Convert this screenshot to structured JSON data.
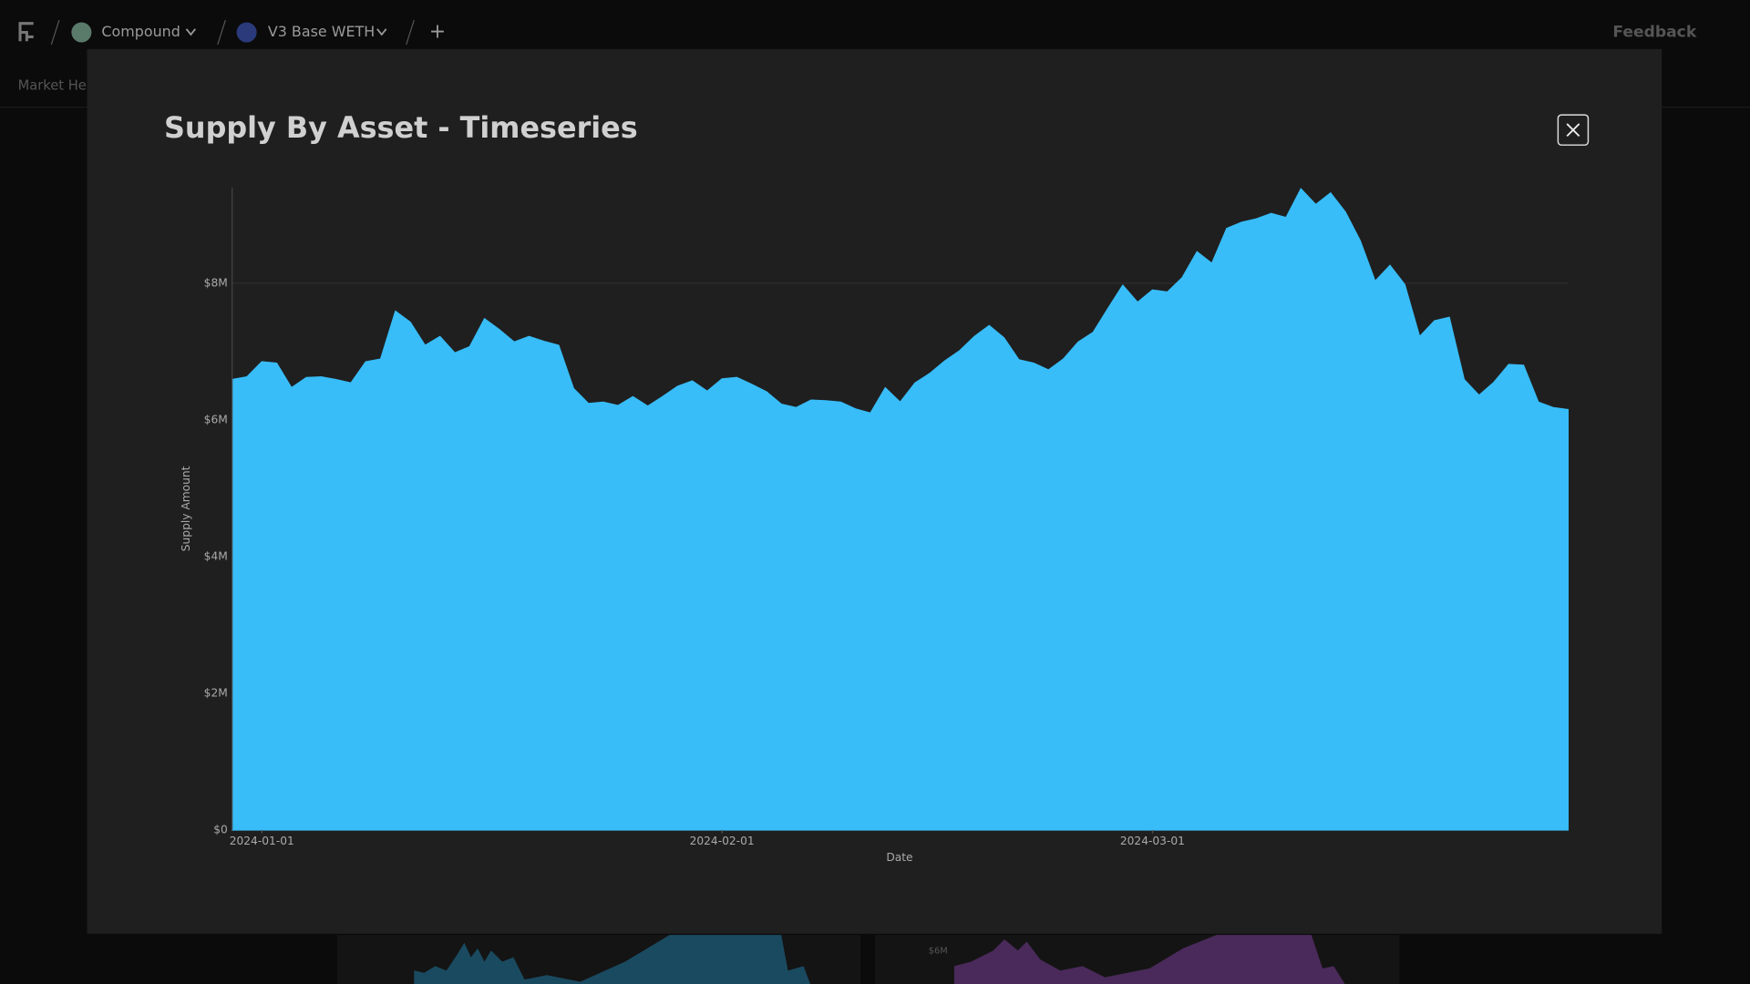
{
  "nav": {
    "project": "Compound",
    "market": "V3 Base WETH",
    "add": "+",
    "feedback": "Feedback",
    "tab": "Market Hea"
  },
  "background": {
    "label": "$6M"
  },
  "chart_data": {
    "type": "area",
    "title": "Supply By Asset - Timeseries",
    "x_label": "Date",
    "y_label": "Supply Amount",
    "color": "#38bdf8",
    "x": [
      "2023-12-30",
      "2023-12-31",
      "2024-01-01",
      "2024-01-02",
      "2024-01-03",
      "2024-01-04",
      "2024-01-05",
      "2024-01-06",
      "2024-01-07",
      "2024-01-08",
      "2024-01-09",
      "2024-01-10",
      "2024-01-11",
      "2024-01-12",
      "2024-01-13",
      "2024-01-14",
      "2024-01-15",
      "2024-01-16",
      "2024-01-17",
      "2024-01-18",
      "2024-01-19",
      "2024-01-20",
      "2024-01-21",
      "2024-01-22",
      "2024-01-23",
      "2024-01-24",
      "2024-01-25",
      "2024-01-26",
      "2024-01-27",
      "2024-01-28",
      "2024-01-29",
      "2024-01-30",
      "2024-01-31",
      "2024-02-01",
      "2024-02-02",
      "2024-02-03",
      "2024-02-04",
      "2024-02-05",
      "2024-02-06",
      "2024-02-07",
      "2024-02-08",
      "2024-02-09",
      "2024-02-10",
      "2024-02-11",
      "2024-02-12",
      "2024-02-13",
      "2024-02-14",
      "2024-02-15",
      "2024-02-16",
      "2024-02-17",
      "2024-02-18",
      "2024-02-19",
      "2024-02-20",
      "2024-02-21",
      "2024-02-22",
      "2024-02-23",
      "2024-02-24",
      "2024-02-25",
      "2024-02-26",
      "2024-02-27",
      "2024-02-28",
      "2024-02-29",
      "2024-03-01",
      "2024-03-02",
      "2024-03-03",
      "2024-03-04",
      "2024-03-05",
      "2024-03-06",
      "2024-03-07",
      "2024-03-08",
      "2024-03-09",
      "2024-03-10",
      "2024-03-11",
      "2024-03-12",
      "2024-03-13",
      "2024-03-14",
      "2024-03-15",
      "2024-03-16",
      "2024-03-17",
      "2024-03-18",
      "2024-03-19",
      "2024-03-20",
      "2024-03-21",
      "2024-03-22",
      "2024-03-23",
      "2024-03-24",
      "2024-03-25",
      "2024-03-26",
      "2024-03-27",
      "2024-03-28",
      "2024-03-29"
    ],
    "values": [
      6590000,
      6630000,
      6850000,
      6830000,
      6470000,
      6620000,
      6630000,
      6590000,
      6540000,
      6850000,
      6890000,
      7590000,
      7430000,
      7090000,
      7220000,
      6980000,
      7070000,
      7480000,
      7320000,
      7140000,
      7220000,
      7150000,
      7090000,
      6460000,
      6240000,
      6260000,
      6210000,
      6340000,
      6200000,
      6340000,
      6490000,
      6570000,
      6420000,
      6600000,
      6620000,
      6520000,
      6410000,
      6230000,
      6180000,
      6290000,
      6280000,
      6260000,
      6160000,
      6100000,
      6470000,
      6260000,
      6540000,
      6680000,
      6860000,
      7010000,
      7220000,
      7380000,
      7200000,
      6880000,
      6830000,
      6730000,
      6890000,
      7140000,
      7280000,
      7630000,
      7970000,
      7720000,
      7900000,
      7870000,
      8080000,
      8460000,
      8290000,
      8800000,
      8890000,
      8940000,
      9020000,
      8960000,
      9380000,
      9150000,
      9320000,
      9040000,
      8620000,
      8030000,
      8260000,
      7980000,
      7220000,
      7450000,
      7500000,
      6590000,
      6360000,
      6550000,
      6810000,
      6800000,
      6260000,
      6180000,
      6150000
    ],
    "xlim": [
      "2023-12-30",
      "2024-03-29"
    ],
    "xticks": [
      "2024-01-01",
      "2024-02-01",
      "2024-03-01"
    ],
    "ylim": [
      0,
      9400000
    ],
    "yticks": [
      {
        "value": 0,
        "label": "$0"
      },
      {
        "value": 2000000,
        "label": "$2M"
      },
      {
        "value": 4000000,
        "label": "$4M"
      },
      {
        "value": 6000000,
        "label": "$6M"
      },
      {
        "value": 8000000,
        "label": "$8M"
      }
    ],
    "grid": true
  }
}
